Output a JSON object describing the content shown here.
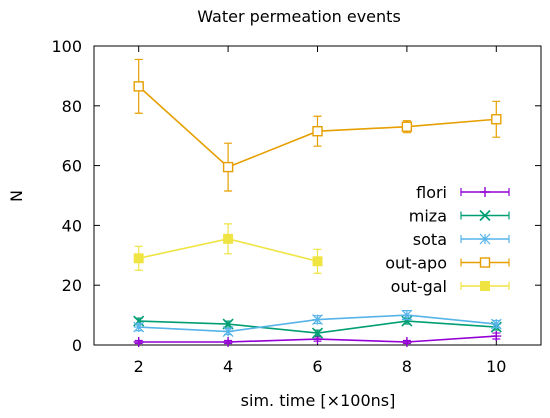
{
  "chart_data": {
    "type": "line",
    "title": "Water permeation events",
    "xlabel": "sim. time [×100ns]",
    "ylabel": "N",
    "xlim": [
      1,
      11
    ],
    "ylim": [
      0,
      100
    ],
    "x_ticks": [
      2,
      4,
      6,
      8,
      10
    ],
    "y_ticks": [
      0,
      20,
      40,
      60,
      80,
      100
    ],
    "grid": false,
    "legend_position": "right",
    "series": [
      {
        "name": "flori",
        "color": "#9400d3",
        "marker": "plus",
        "x": [
          2,
          4,
          6,
          8,
          10
        ],
        "y": [
          1,
          1,
          2,
          1,
          3
        ],
        "err": [
          0.5,
          0.5,
          0.7,
          0.5,
          1.0
        ]
      },
      {
        "name": "miza",
        "color": "#009e73",
        "marker": "cross",
        "x": [
          2,
          4,
          6,
          8,
          10
        ],
        "y": [
          8,
          7,
          4,
          8,
          6
        ],
        "err": [
          1.0,
          1.0,
          1.0,
          1.0,
          1.0
        ]
      },
      {
        "name": "sota",
        "color": "#56b4e9",
        "marker": "star",
        "x": [
          2,
          4,
          6,
          8,
          10
        ],
        "y": [
          6,
          4.5,
          8.5,
          10,
          7
        ],
        "err": [
          1.2,
          1.0,
          1.3,
          1.5,
          1.2
        ]
      },
      {
        "name": "out-apo",
        "color": "#e69f00",
        "marker": "square-open",
        "x": [
          2,
          4,
          6,
          8,
          10
        ],
        "y": [
          86.5,
          59.5,
          71.5,
          73,
          75.5
        ],
        "err": [
          9,
          8,
          5,
          2,
          6
        ]
      },
      {
        "name": "out-gal",
        "color": "#f0e442",
        "marker": "square-filled",
        "x": [
          2,
          4,
          6
        ],
        "y": [
          29,
          35.5,
          28
        ],
        "err": [
          4,
          5,
          4
        ]
      }
    ]
  }
}
